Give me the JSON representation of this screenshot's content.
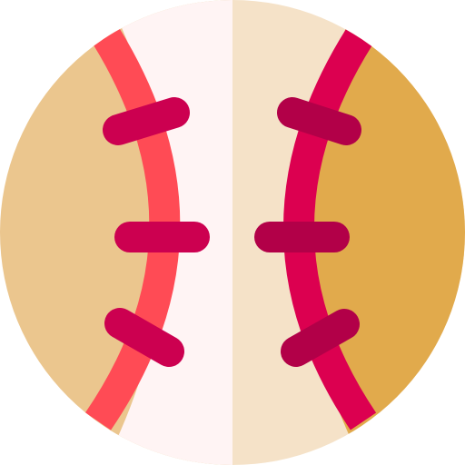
{
  "icon": {
    "name": "baseball-icon",
    "colors": {
      "left_panel": "#ebc68e",
      "center_left": "#fff4f4",
      "center_right": "#f5e2c8",
      "right_panel": "#e1aa4c",
      "left_seam": "#ff4b55",
      "right_seam": "#dc0050",
      "left_stitch": "#cc0050",
      "right_stitch": "#b20048"
    }
  }
}
